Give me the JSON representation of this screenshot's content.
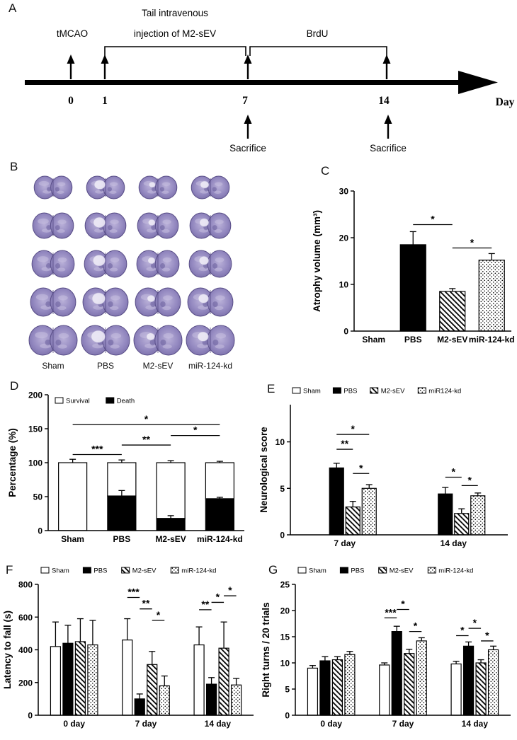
{
  "panels": {
    "A": {
      "letter": "A",
      "tmcao": "tMCAO",
      "injection_line1": "Tail intravenous",
      "injection_line2": "injection of M2-sEV",
      "brdu": "BrdU",
      "day_label": "Day",
      "days": [
        "0",
        "1",
        "7",
        "14"
      ],
      "sacrifice": "Sacrifice"
    },
    "B": {
      "letter": "B",
      "columns": [
        "Sham",
        "PBS",
        "M2-sEV",
        "miR-124-kd"
      ],
      "num_rows": 5
    },
    "C": {
      "letter": "C"
    },
    "D": {
      "letter": "D"
    },
    "E": {
      "letter": "E"
    },
    "F": {
      "letter": "F"
    },
    "G": {
      "letter": "G"
    }
  },
  "colors": {
    "brain_base": "#9287bf",
    "brain_light": "#b9b0d8",
    "brain_dark": "#6f649f",
    "bar_black": "#000000",
    "bar_white": "#ffffff"
  },
  "chart_data": [
    {
      "id": "C",
      "panel": "C",
      "type": "bar",
      "ylabel": "Atrophy volume (mm³)",
      "categories": [
        "Sham",
        "PBS",
        "M2-sEV",
        "miR-124-kd"
      ],
      "values": [
        0,
        18.5,
        8.5,
        15.2
      ],
      "errors": [
        0,
        2.8,
        0.6,
        1.4
      ],
      "styles": [
        "white",
        "black",
        "hatch",
        "dots"
      ],
      "ylim": [
        0,
        30
      ],
      "yticks": [
        0,
        10,
        20,
        30
      ],
      "sig": [
        {
          "i": 1,
          "j": 2,
          "y": 22.8,
          "label": "*"
        },
        {
          "i": 2,
          "j": 3,
          "y": 17.8,
          "label": "*"
        }
      ]
    },
    {
      "id": "D",
      "panel": "D",
      "type": "stacked-bar",
      "ylabel": "Percentage (%)",
      "categories": [
        "Sham",
        "PBS",
        "M2-sEV",
        "miR-124-kd"
      ],
      "series": [
        {
          "name": "Death",
          "style": "black",
          "values": [
            0,
            51,
            18,
            47
          ],
          "errors": [
            0,
            8,
            4,
            2
          ]
        },
        {
          "name": "Survival",
          "style": "white",
          "values": [
            100,
            49,
            82,
            53
          ],
          "errors": [
            5,
            4,
            3,
            2
          ]
        }
      ],
      "legend": [
        {
          "label": "Survival",
          "style": "white"
        },
        {
          "label": "Death",
          "style": "black"
        }
      ],
      "ylim": [
        0,
        200
      ],
      "yticks": [
        0,
        50,
        100,
        150,
        200
      ],
      "sig": [
        {
          "i": 0,
          "j": 1,
          "y": 112,
          "label": "***"
        },
        {
          "i": 1,
          "j": 2,
          "y": 126,
          "label": "**"
        },
        {
          "i": 2,
          "j": 3,
          "y": 140,
          "label": "*"
        },
        {
          "i": 0,
          "j": 3,
          "y": 156,
          "label": "*"
        }
      ]
    },
    {
      "id": "E",
      "panel": "E",
      "type": "grouped-bar",
      "ylabel": "Neurological score",
      "groups": [
        "7 day",
        "14 day"
      ],
      "series": [
        {
          "name": "Sham",
          "style": "white",
          "values": [
            0,
            0
          ],
          "errors": [
            0,
            0
          ]
        },
        {
          "name": "PBS",
          "style": "black",
          "values": [
            7.2,
            4.4
          ],
          "errors": [
            0.5,
            0.7
          ]
        },
        {
          "name": "M2-sEV",
          "style": "hatch",
          "values": [
            3,
            2.3
          ],
          "errors": [
            0.6,
            0.5
          ]
        },
        {
          "name": "miR124-kd",
          "style": "dots",
          "values": [
            5,
            4.2
          ],
          "errors": [
            0.4,
            0.3
          ]
        }
      ],
      "legend": [
        {
          "label": "Sham",
          "style": "white"
        },
        {
          "label": "PBS",
          "style": "black"
        },
        {
          "label": "M2-sEV",
          "style": "hatch"
        },
        {
          "label": "miR124-kd",
          "style": "dots"
        }
      ],
      "ylim": [
        0,
        14
      ],
      "yticks": [
        0,
        5,
        10
      ],
      "sig": [
        {
          "group": 0,
          "i": 1,
          "j": 3,
          "y": 10.8,
          "label": "*"
        },
        {
          "group": 0,
          "i": 1,
          "j": 2,
          "y": 9.2,
          "label": "**"
        },
        {
          "group": 0,
          "i": 2,
          "j": 3,
          "y": 6.6,
          "label": "*"
        },
        {
          "group": 1,
          "i": 1,
          "j": 2,
          "y": 6.2,
          "label": "*"
        },
        {
          "group": 1,
          "i": 2,
          "j": 3,
          "y": 5.3,
          "label": "*"
        }
      ]
    },
    {
      "id": "F",
      "panel": "F",
      "type": "grouped-bar",
      "ylabel": "Latency to fall (s)",
      "groups": [
        "0 day",
        "7 day",
        "14 day"
      ],
      "series": [
        {
          "name": "Sham",
          "style": "white",
          "values": [
            420,
            460,
            430
          ],
          "errors": [
            150,
            130,
            110
          ]
        },
        {
          "name": "PBS",
          "style": "black",
          "values": [
            440,
            100,
            190
          ],
          "errors": [
            110,
            30,
            40
          ]
        },
        {
          "name": "M2-sEV",
          "style": "hatch",
          "values": [
            450,
            310,
            410
          ],
          "errors": [
            140,
            80,
            160
          ]
        },
        {
          "name": "miR-124-kd",
          "style": "dots",
          "values": [
            430,
            180,
            185
          ],
          "errors": [
            150,
            60,
            40
          ]
        }
      ],
      "legend": [
        {
          "label": "Sham",
          "style": "white"
        },
        {
          "label": "PBS",
          "style": "black"
        },
        {
          "label": "M2-sEV",
          "style": "hatch"
        },
        {
          "label": "miR-124-kd",
          "style": "dots"
        }
      ],
      "ylim": [
        0,
        800
      ],
      "yticks": [
        0,
        200,
        400,
        600,
        800
      ],
      "sig": [
        {
          "group": 1,
          "i": 0,
          "j": 1,
          "y": 720,
          "label": "***"
        },
        {
          "group": 1,
          "i": 1,
          "j": 2,
          "y": 650,
          "label": "**"
        },
        {
          "group": 1,
          "i": 2,
          "j": 3,
          "y": 580,
          "label": "*"
        },
        {
          "group": 2,
          "i": 0,
          "j": 1,
          "y": 645,
          "label": "**"
        },
        {
          "group": 2,
          "i": 1,
          "j": 2,
          "y": 690,
          "label": "*"
        },
        {
          "group": 2,
          "i": 2,
          "j": 3,
          "y": 730,
          "label": "*"
        }
      ]
    },
    {
      "id": "G",
      "panel": "G",
      "type": "grouped-bar",
      "ylabel": "Right turns / 20 trials",
      "groups": [
        "0 day",
        "7 day",
        "14 day"
      ],
      "series": [
        {
          "name": "Sham",
          "style": "white",
          "values": [
            9,
            9.6,
            9.8
          ],
          "errors": [
            0.5,
            0.4,
            0.5
          ]
        },
        {
          "name": "PBS",
          "style": "black",
          "values": [
            10.4,
            16,
            13.2
          ],
          "errors": [
            0.8,
            1,
            0.8
          ]
        },
        {
          "name": "M2-sEV",
          "style": "hatch",
          "values": [
            10.6,
            11.8,
            10
          ],
          "errors": [
            0.6,
            0.8,
            0.6
          ]
        },
        {
          "name": "miR-124-kd",
          "style": "dots",
          "values": [
            11.6,
            14.2,
            12.5
          ],
          "errors": [
            0.6,
            0.6,
            0.7
          ]
        }
      ],
      "legend": [
        {
          "label": "Sham",
          "style": "white"
        },
        {
          "label": "PBS",
          "style": "black"
        },
        {
          "label": "M2-sEV",
          "style": "hatch"
        },
        {
          "label": "miR-124-kd",
          "style": "dots"
        }
      ],
      "ylim": [
        0,
        25
      ],
      "yticks": [
        0,
        5,
        10,
        15,
        20,
        25
      ],
      "sig": [
        {
          "group": 1,
          "i": 0,
          "j": 1,
          "y": 18.6,
          "label": "***"
        },
        {
          "group": 1,
          "i": 1,
          "j": 2,
          "y": 20.2,
          "label": "*"
        },
        {
          "group": 1,
          "i": 2,
          "j": 3,
          "y": 16,
          "label": "*"
        },
        {
          "group": 2,
          "i": 0,
          "j": 1,
          "y": 15.2,
          "label": "*"
        },
        {
          "group": 2,
          "i": 1,
          "j": 2,
          "y": 16.6,
          "label": "*"
        },
        {
          "group": 2,
          "i": 2,
          "j": 3,
          "y": 14.2,
          "label": "*"
        }
      ]
    }
  ]
}
